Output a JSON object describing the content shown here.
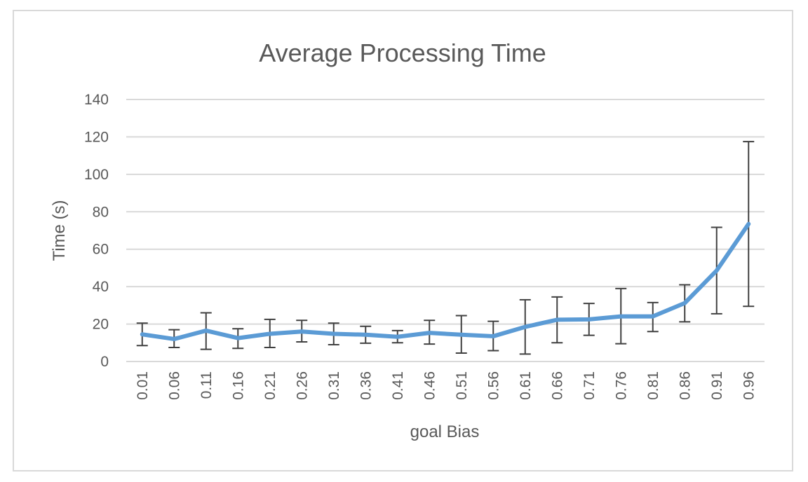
{
  "chart_data": {
    "type": "line",
    "title": "Average Processing Time",
    "xlabel": "goal Bias",
    "ylabel": "Time (s)",
    "ylim": [
      0,
      140
    ],
    "yticks": [
      "0",
      "20",
      "40",
      "60",
      "80",
      "100",
      "120",
      "140"
    ],
    "grid": true,
    "legend": "none",
    "categories": [
      "0.01",
      "0.06",
      "0.11",
      "0.16",
      "0.21",
      "0.26",
      "0.31",
      "0.36",
      "0.41",
      "0.46",
      "0.51",
      "0.56",
      "0.61",
      "0.66",
      "0.71",
      "0.76",
      "0.81",
      "0.86",
      "0.91",
      "0.96"
    ],
    "series": [
      {
        "values": [
          14.5,
          12,
          16.5,
          12.5,
          14.8,
          16,
          14.8,
          14.3,
          13.2,
          15.3,
          14.3,
          13.5,
          18.5,
          22.3,
          22.5,
          24.1,
          24.1,
          31.2,
          48.6,
          73.5
        ],
        "err_low": [
          8.5,
          7.5,
          6.5,
          7,
          7.5,
          10.5,
          9,
          9.8,
          10,
          9.3,
          4.5,
          5.8,
          4,
          10,
          14,
          9.5,
          16,
          21.2,
          25.5,
          29.5
        ],
        "err_high": [
          20.5,
          17,
          26,
          17.5,
          22.5,
          22,
          20.5,
          18.8,
          16.5,
          22,
          24.5,
          21.5,
          33,
          34.5,
          31,
          39,
          31.5,
          41,
          71.7,
          117.5
        ]
      }
    ],
    "colors": {
      "line": "#5b9bd5",
      "error_bar": "#404040",
      "grid": "#d9d9d9",
      "text": "#595959"
    }
  }
}
